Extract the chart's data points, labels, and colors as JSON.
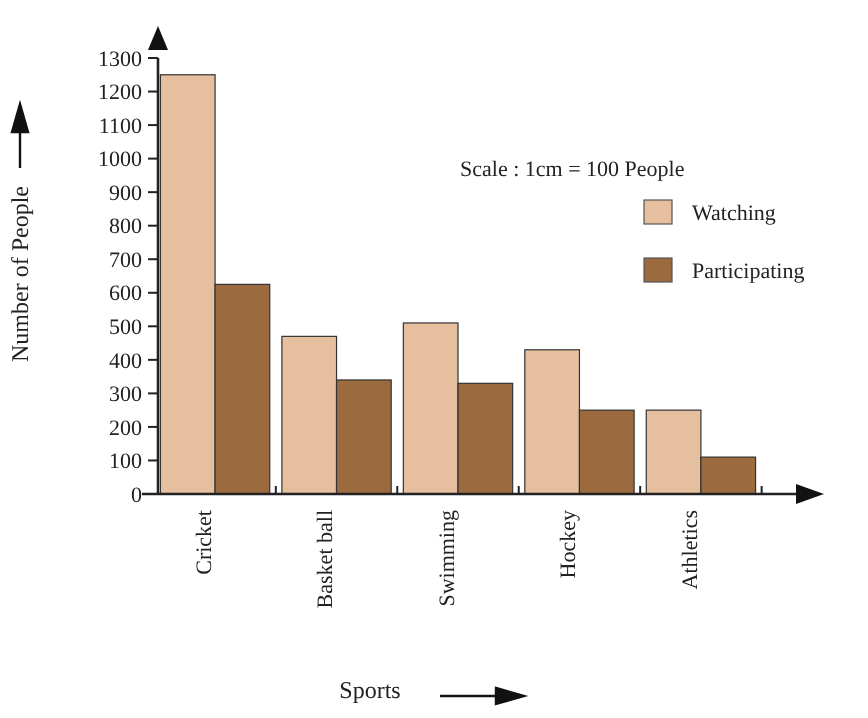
{
  "chart_data": {
    "type": "bar",
    "xlabel": "Sports",
    "ylabel": "Number of People",
    "categories": [
      "Cricket",
      "Basket ball",
      "Swimming",
      "Hockey",
      "Athletics"
    ],
    "series": [
      {
        "name": "Watching",
        "color": "#e6bf9f",
        "values": [
          1250,
          470,
          510,
          430,
          250
        ]
      },
      {
        "name": "Participating",
        "color": "#9b6b3f",
        "values": [
          625,
          340,
          330,
          250,
          110
        ]
      }
    ],
    "ylim": [
      0,
      1300
    ],
    "yticks": [
      0,
      100,
      200,
      300,
      400,
      500,
      600,
      700,
      800,
      900,
      1000,
      1100,
      1200,
      1300
    ],
    "legend": "top right",
    "annotations": [
      "Scale : 1cm = 100 People"
    ]
  }
}
